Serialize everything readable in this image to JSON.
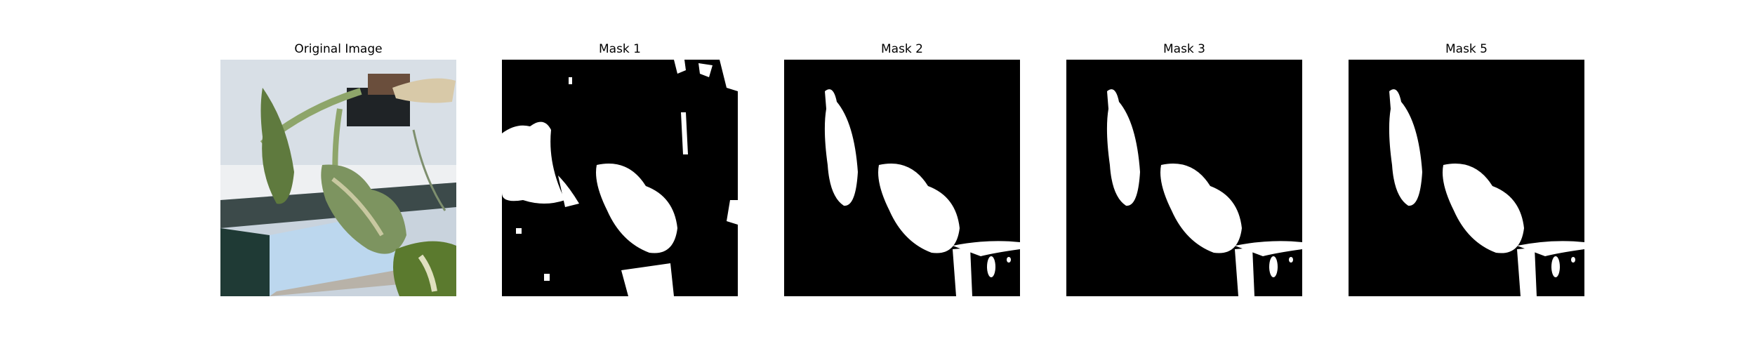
{
  "panels": [
    {
      "title": "Original Image",
      "kind": "photo",
      "description_icon": "plant-photo"
    },
    {
      "title": "Mask 1",
      "kind": "mask"
    },
    {
      "title": "Mask 2",
      "kind": "mask"
    },
    {
      "title": "Mask 3",
      "kind": "mask"
    },
    {
      "title": "Mask 5",
      "kind": "mask"
    }
  ],
  "colors": {
    "mask_background": "#000000",
    "mask_foreground": "#ffffff",
    "sky": "#b9c7d6",
    "leaf": "#6f8a4f",
    "stem": "#8ea56a"
  }
}
